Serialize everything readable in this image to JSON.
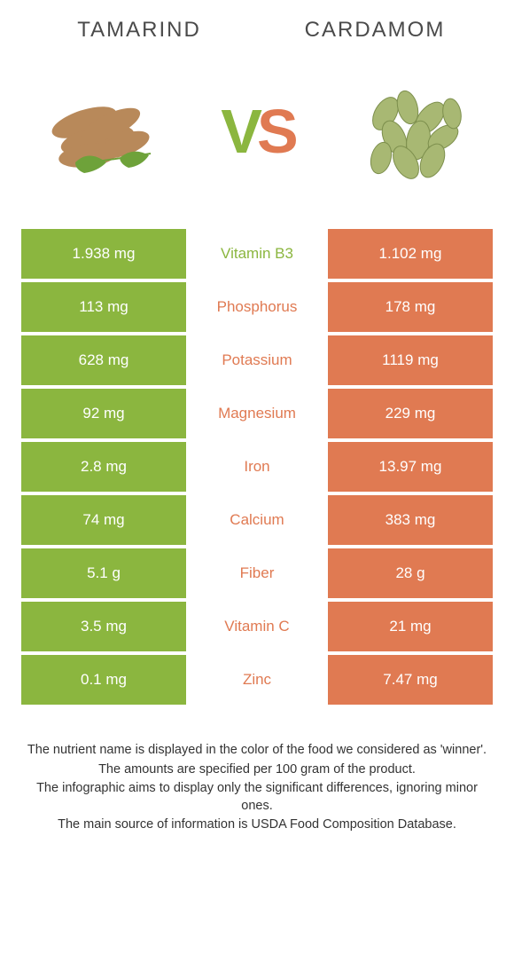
{
  "header": {
    "left_title": "Tamarind",
    "right_title": "Cardamom"
  },
  "vs": {
    "v": "V",
    "s": "S"
  },
  "colors": {
    "left": "#8bb63f",
    "right": "#e07a52",
    "text": "#4a4a4a"
  },
  "table": {
    "rows": [
      {
        "left": "1.938 mg",
        "label": "Vitamin B3",
        "right": "1.102 mg",
        "winner": "left"
      },
      {
        "left": "113 mg",
        "label": "Phosphorus",
        "right": "178 mg",
        "winner": "right"
      },
      {
        "left": "628 mg",
        "label": "Potassium",
        "right": "1119 mg",
        "winner": "right"
      },
      {
        "left": "92 mg",
        "label": "Magnesium",
        "right": "229 mg",
        "winner": "right"
      },
      {
        "left": "2.8 mg",
        "label": "Iron",
        "right": "13.97 mg",
        "winner": "right"
      },
      {
        "left": "74 mg",
        "label": "Calcium",
        "right": "383 mg",
        "winner": "right"
      },
      {
        "left": "5.1 g",
        "label": "Fiber",
        "right": "28 g",
        "winner": "right"
      },
      {
        "left": "3.5 mg",
        "label": "Vitamin C",
        "right": "21 mg",
        "winner": "right"
      },
      {
        "left": "0.1 mg",
        "label": "Zinc",
        "right": "7.47 mg",
        "winner": "right"
      }
    ]
  },
  "footnotes": {
    "line1": "The nutrient name is displayed in the color of the food we considered as 'winner'.",
    "line2": "The amounts are specified per 100 gram of the product.",
    "line3": "The infographic aims to display only the significant differences, ignoring minor ones.",
    "line4": "The main source of information is USDA Food Composition Database."
  }
}
